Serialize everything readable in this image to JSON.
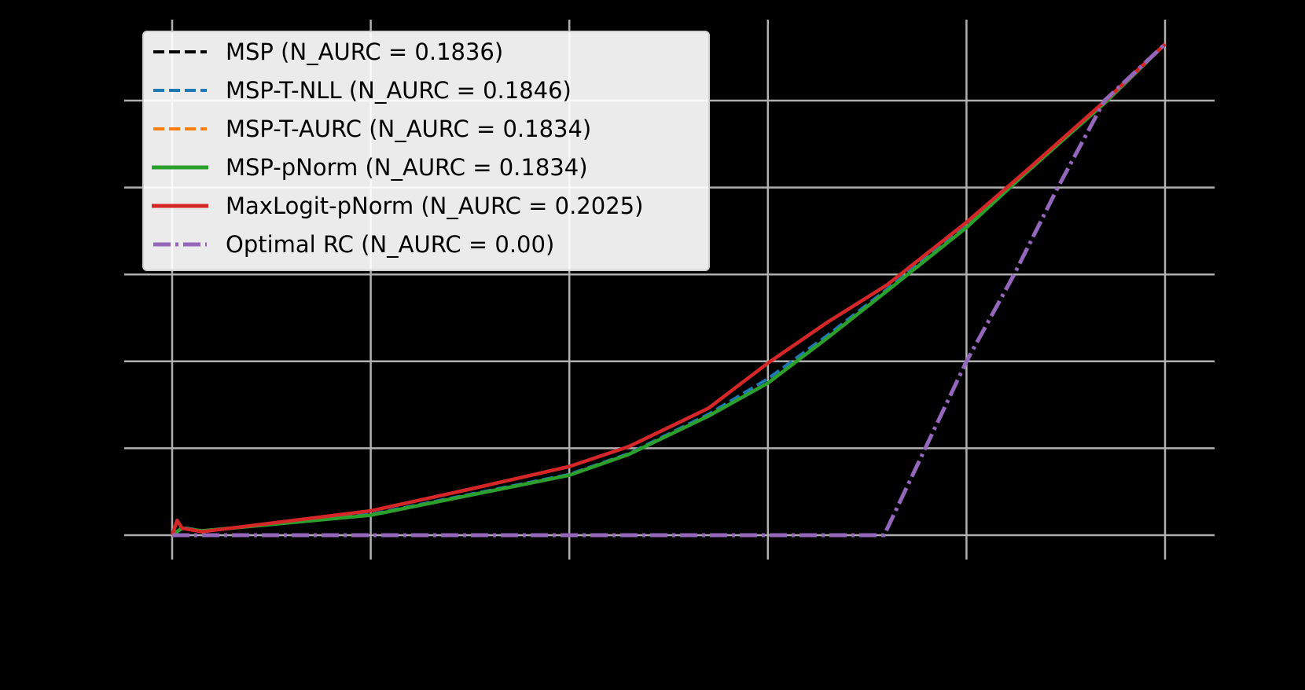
{
  "chart_data": {
    "type": "line",
    "title": "",
    "xlabel": "",
    "ylabel": "",
    "xlim": [
      -0.05,
      1.05
    ],
    "ylim": [
      -0.3,
      5.95
    ],
    "x_ticks": [
      0.0,
      0.2,
      0.4,
      0.6,
      0.8,
      1.0
    ],
    "y_ticks": [
      0,
      1,
      2,
      3,
      4,
      5
    ],
    "tick_labels_visible": false,
    "grid": true,
    "legend_position": "upper left",
    "series": [
      {
        "name": "MSP (N_AURC = 0.1836)",
        "color": "#000000",
        "style": "dashed",
        "x": [
          0.0,
          0.01,
          0.03,
          0.2,
          0.3,
          0.4,
          0.46,
          0.54,
          0.6,
          0.66,
          0.72,
          0.8,
          0.86,
          0.94,
          1.0
        ],
        "y": [
          0.0,
          0.08,
          0.05,
          0.24,
          0.46,
          0.69,
          0.93,
          1.37,
          1.76,
          2.28,
          2.82,
          3.55,
          4.17,
          4.98,
          5.65
        ]
      },
      {
        "name": "MSP-T-NLL (N_AURC = 0.1846)",
        "color": "#1f77b4",
        "style": "dashed",
        "x": [
          0.0,
          0.01,
          0.03,
          0.2,
          0.3,
          0.4,
          0.46,
          0.54,
          0.6,
          0.66,
          0.72,
          0.8,
          0.86,
          0.94,
          1.0
        ],
        "y": [
          0.0,
          0.09,
          0.05,
          0.24,
          0.47,
          0.7,
          0.94,
          1.39,
          1.8,
          2.3,
          2.83,
          3.56,
          4.18,
          4.98,
          5.65
        ]
      },
      {
        "name": "MSP-T-AURC (N_AURC = 0.1834)",
        "color": "#ff7f0e",
        "style": "dashed",
        "x": [
          0.0,
          0.01,
          0.03,
          0.2,
          0.3,
          0.4,
          0.46,
          0.54,
          0.6,
          0.66,
          0.72,
          0.8,
          0.86,
          0.94,
          1.0
        ],
        "y": [
          0.0,
          0.08,
          0.05,
          0.23,
          0.46,
          0.69,
          0.93,
          1.37,
          1.75,
          2.27,
          2.81,
          3.54,
          4.17,
          4.98,
          5.65
        ]
      },
      {
        "name": "MSP-pNorm (N_AURC = 0.1834)",
        "color": "#2ca02c",
        "style": "solid",
        "x": [
          0.0,
          0.01,
          0.03,
          0.2,
          0.3,
          0.4,
          0.46,
          0.54,
          0.6,
          0.66,
          0.72,
          0.8,
          0.86,
          0.94,
          1.0
        ],
        "y": [
          0.0,
          0.08,
          0.05,
          0.23,
          0.46,
          0.69,
          0.93,
          1.37,
          1.75,
          2.27,
          2.81,
          3.54,
          4.17,
          4.98,
          5.65
        ]
      },
      {
        "name": "MaxLogit-pNorm (N_AURC = 0.2025)",
        "color": "#d62728",
        "style": "solid",
        "x": [
          0.0,
          0.005,
          0.01,
          0.03,
          0.2,
          0.3,
          0.4,
          0.46,
          0.54,
          0.6,
          0.66,
          0.72,
          0.8,
          0.86,
          0.94,
          1.0
        ],
        "y": [
          0.0,
          0.17,
          0.08,
          0.04,
          0.28,
          0.53,
          0.79,
          1.02,
          1.46,
          1.98,
          2.45,
          2.88,
          3.6,
          4.19,
          5.0,
          5.65
        ]
      },
      {
        "name": "Optimal RC (N_AURC = 0.00)",
        "color": "#9467bd",
        "style": "dashdot",
        "x": [
          0.0,
          0.717,
          0.8,
          0.848,
          0.892,
          0.939,
          1.0
        ],
        "y": [
          0.0,
          0.0,
          2.0,
          3.0,
          4.0,
          5.0,
          5.65
        ]
      }
    ]
  },
  "legend": {
    "items": [
      {
        "label": "MSP (N_AURC = 0.1836)",
        "color": "#000000",
        "style": "dashed"
      },
      {
        "label": "MSP-T-NLL (N_AURC = 0.1846)",
        "color": "#1f77b4",
        "style": "dashed"
      },
      {
        "label": "MSP-T-AURC (N_AURC = 0.1834)",
        "color": "#ff7f0e",
        "style": "dashed"
      },
      {
        "label": "MSP-pNorm (N_AURC = 0.1834)",
        "color": "#2ca02c",
        "style": "solid"
      },
      {
        "label": "MaxLogit-pNorm (N_AURC = 0.2025)",
        "color": "#d62728",
        "style": "solid"
      },
      {
        "label": "Optimal RC (N_AURC = 0.00)",
        "color": "#9467bd",
        "style": "dashdot"
      }
    ]
  },
  "colors": {
    "background": "#000000",
    "grid": "#b0b0b0"
  }
}
